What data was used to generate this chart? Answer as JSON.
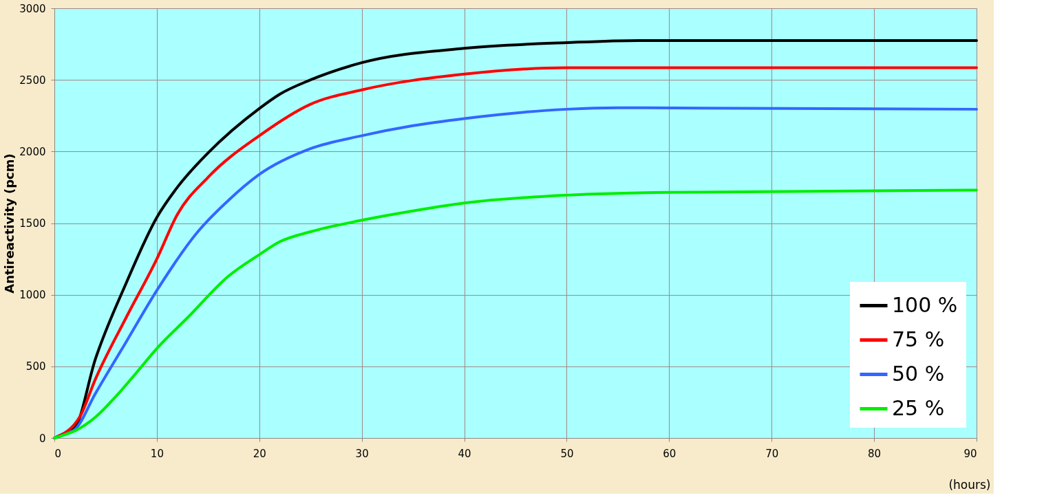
{
  "chart_data": {
    "type": "line",
    "ylabel": "Antireactivity (pcm)",
    "xlabel": "(hours)",
    "xlim": [
      0,
      90
    ],
    "ylim": [
      0,
      3000
    ],
    "xticks": [
      0,
      10,
      20,
      30,
      40,
      50,
      60,
      70,
      80,
      90
    ],
    "yticks": [
      0,
      500,
      1000,
      1500,
      2000,
      2500,
      3000
    ],
    "grid": true,
    "legend": "bottom right",
    "marker": "none",
    "line_style": "solid",
    "series": [
      {
        "name": "100 %",
        "color": "#000000",
        "x": [
          0,
          1.5,
          2,
          4,
          7,
          10,
          12,
          15,
          20,
          22,
          25,
          30,
          40,
          50,
          57,
          90
        ],
        "values": [
          0,
          50,
          70,
          550,
          1080,
          1540,
          1750,
          1990,
          2300,
          2400,
          2500,
          2620,
          2720,
          2760,
          2775,
          2775
        ]
      },
      {
        "name": " 75 %",
        "color": "#ff0000",
        "x": [
          0,
          2.5,
          4,
          7,
          10,
          12,
          15,
          20,
          25,
          30,
          40,
          50,
          90
        ],
        "values": [
          0,
          150,
          410,
          840,
          1250,
          1560,
          1820,
          2110,
          2330,
          2430,
          2540,
          2585,
          2585
        ]
      },
      {
        "name": " 50 %",
        "color": "#3366ff",
        "x": [
          0,
          1.5,
          2,
          4,
          7,
          10,
          14,
          17,
          20,
          25,
          30,
          35,
          40,
          50,
          55,
          90
        ],
        "values": [
          0,
          40,
          60,
          310,
          670,
          1030,
          1440,
          1660,
          1840,
          2020,
          2110,
          2180,
          2230,
          2295,
          2305,
          2295
        ]
      },
      {
        "name": " 25 %",
        "color": "#00ee00",
        "x": [
          0,
          1.5,
          2,
          4,
          6,
          8,
          10,
          13,
          17,
          20,
          22,
          25,
          30,
          35,
          40,
          50,
          60,
          90
        ],
        "values": [
          0,
          35,
          50,
          145,
          290,
          455,
          625,
          840,
          1130,
          1280,
          1370,
          1440,
          1520,
          1585,
          1640,
          1695,
          1715,
          1730
        ]
      }
    ]
  }
}
